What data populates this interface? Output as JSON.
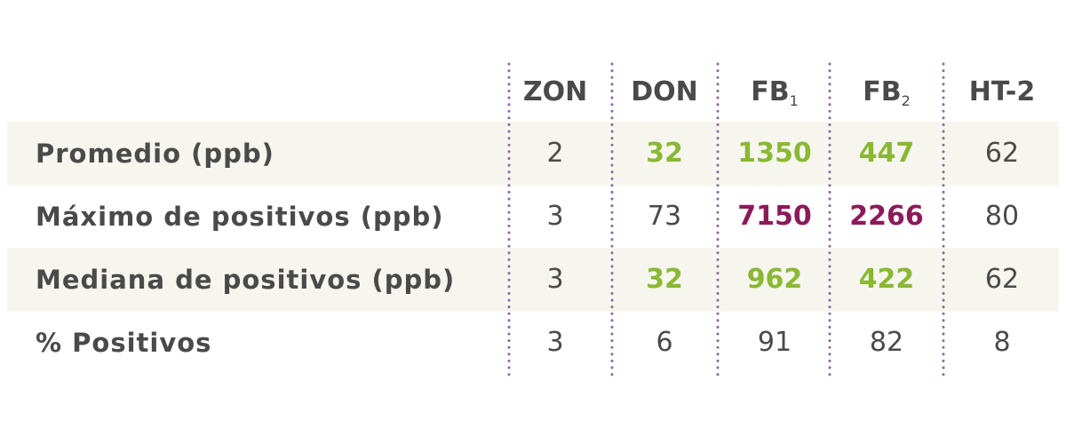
{
  "table": {
    "columns": [
      {
        "text": "ZON"
      },
      {
        "text": "DON"
      },
      {
        "text": "FB",
        "sub": "1"
      },
      {
        "text": "FB",
        "sub": "2"
      },
      {
        "text": "HT-2"
      }
    ],
    "rows": [
      {
        "label": "Promedio (ppb)",
        "shaded": true,
        "cells": [
          {
            "value": 2,
            "color": "#4a4a4a",
            "bold": false
          },
          {
            "value": 32,
            "color": "#8ab833",
            "bold": true
          },
          {
            "value": 1350,
            "color": "#8ab833",
            "bold": true
          },
          {
            "value": 447,
            "color": "#8ab833",
            "bold": true
          },
          {
            "value": 62,
            "color": "#4a4a4a",
            "bold": false
          }
        ]
      },
      {
        "label": "Máximo de positivos (ppb)",
        "shaded": false,
        "cells": [
          {
            "value": 3,
            "color": "#4a4a4a",
            "bold": false
          },
          {
            "value": 73,
            "color": "#4a4a4a",
            "bold": false
          },
          {
            "value": 7150,
            "color": "#8b1a5a",
            "bold": true
          },
          {
            "value": 2266,
            "color": "#8b1a5a",
            "bold": true
          },
          {
            "value": 80,
            "color": "#4a4a4a",
            "bold": false
          }
        ]
      },
      {
        "label": "Mediana de positivos (ppb)",
        "shaded": true,
        "cells": [
          {
            "value": 3,
            "color": "#4a4a4a",
            "bold": false
          },
          {
            "value": 32,
            "color": "#8ab833",
            "bold": true
          },
          {
            "value": 962,
            "color": "#8ab833",
            "bold": true
          },
          {
            "value": 422,
            "color": "#8ab833",
            "bold": true
          },
          {
            "value": 62,
            "color": "#4a4a4a",
            "bold": false
          }
        ]
      },
      {
        "label": "% Positivos",
        "shaded": false,
        "cells": [
          {
            "value": 3,
            "color": "#4a4a4a",
            "bold": false
          },
          {
            "value": 6,
            "color": "#4a4a4a",
            "bold": false
          },
          {
            "value": 91,
            "color": "#4a4a4a",
            "bold": false
          },
          {
            "value": 82,
            "color": "#4a4a4a",
            "bold": false
          },
          {
            "value": 8,
            "color": "#4a4a4a",
            "bold": false
          }
        ]
      }
    ]
  }
}
